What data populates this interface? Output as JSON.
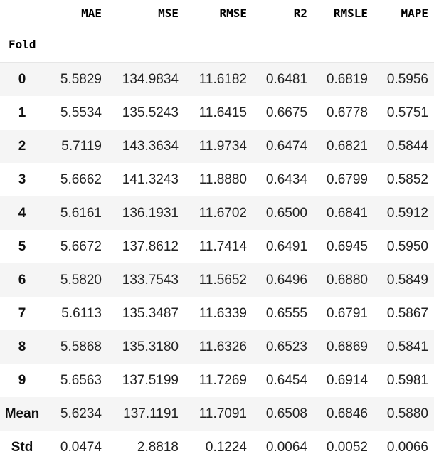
{
  "table": {
    "columns": [
      "MAE",
      "MSE",
      "RMSE",
      "R2",
      "RMSLE",
      "MAPE"
    ],
    "index_name": "Fold",
    "rows": [
      {
        "label": "0",
        "values": [
          "5.5829",
          "134.9834",
          "11.6182",
          "0.6481",
          "0.6819",
          "0.5956"
        ]
      },
      {
        "label": "1",
        "values": [
          "5.5534",
          "135.5243",
          "11.6415",
          "0.6675",
          "0.6778",
          "0.5751"
        ]
      },
      {
        "label": "2",
        "values": [
          "5.7119",
          "143.3634",
          "11.9734",
          "0.6474",
          "0.6821",
          "0.5844"
        ]
      },
      {
        "label": "3",
        "values": [
          "5.6662",
          "141.3243",
          "11.8880",
          "0.6434",
          "0.6799",
          "0.5852"
        ]
      },
      {
        "label": "4",
        "values": [
          "5.6161",
          "136.1931",
          "11.6702",
          "0.6500",
          "0.6841",
          "0.5912"
        ]
      },
      {
        "label": "5",
        "values": [
          "5.6672",
          "137.8612",
          "11.7414",
          "0.6491",
          "0.6945",
          "0.5950"
        ]
      },
      {
        "label": "6",
        "values": [
          "5.5820",
          "133.7543",
          "11.5652",
          "0.6496",
          "0.6880",
          "0.5849"
        ]
      },
      {
        "label": "7",
        "values": [
          "5.6113",
          "135.3487",
          "11.6339",
          "0.6555",
          "0.6791",
          "0.5867"
        ]
      },
      {
        "label": "8",
        "values": [
          "5.5868",
          "135.3180",
          "11.6326",
          "0.6523",
          "0.6869",
          "0.5841"
        ]
      },
      {
        "label": "9",
        "values": [
          "5.6563",
          "137.5199",
          "11.7269",
          "0.6454",
          "0.6914",
          "0.5981"
        ]
      },
      {
        "label": "Mean",
        "values": [
          "5.6234",
          "137.1191",
          "11.7091",
          "0.6508",
          "0.6846",
          "0.5880"
        ]
      },
      {
        "label": "Std",
        "values": [
          "0.0474",
          "2.8818",
          "0.1224",
          "0.0064",
          "0.0052",
          "0.0066"
        ]
      }
    ]
  }
}
